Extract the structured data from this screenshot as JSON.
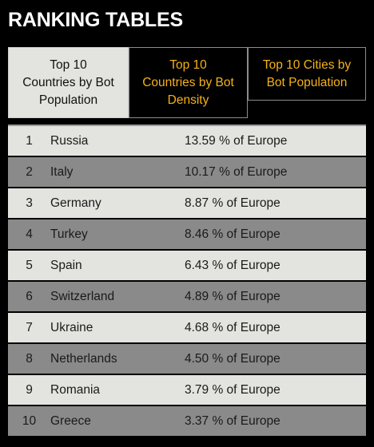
{
  "page": {
    "title": "RANKING TABLES"
  },
  "tabs": [
    {
      "label": "Top 10\nCountries by Bot\nPopulation",
      "active": true
    },
    {
      "label": "Top 10\nCountries by Bot\nDensity",
      "active": false
    },
    {
      "label": "Top 10 Cities by\nBot Population",
      "active": false
    }
  ],
  "table": {
    "rows": [
      {
        "rank": "1",
        "country": "Russia",
        "value": "13.59 % of Europe"
      },
      {
        "rank": "2",
        "country": "Italy",
        "value": "10.17 % of Europe"
      },
      {
        "rank": "3",
        "country": "Germany",
        "value": "8.87 % of Europe"
      },
      {
        "rank": "4",
        "country": "Turkey",
        "value": "8.46 % of Europe"
      },
      {
        "rank": "5",
        "country": "Spain",
        "value": "6.43 % of Europe"
      },
      {
        "rank": "6",
        "country": "Switzerland",
        "value": "4.89 % of Europe"
      },
      {
        "rank": "7",
        "country": "Ukraine",
        "value": "4.68 % of Europe"
      },
      {
        "rank": "8",
        "country": "Netherlands",
        "value": "4.50 % of Europe"
      },
      {
        "rank": "9",
        "country": "Romania",
        "value": "3.79 % of Europe"
      },
      {
        "rank": "10",
        "country": "Greece",
        "value": "3.37 % of Europe"
      }
    ]
  },
  "colors": {
    "background": "#000000",
    "accent": "#f5b21a",
    "row_light": "#e3e3e0",
    "row_dark": "#8a8a8a"
  }
}
